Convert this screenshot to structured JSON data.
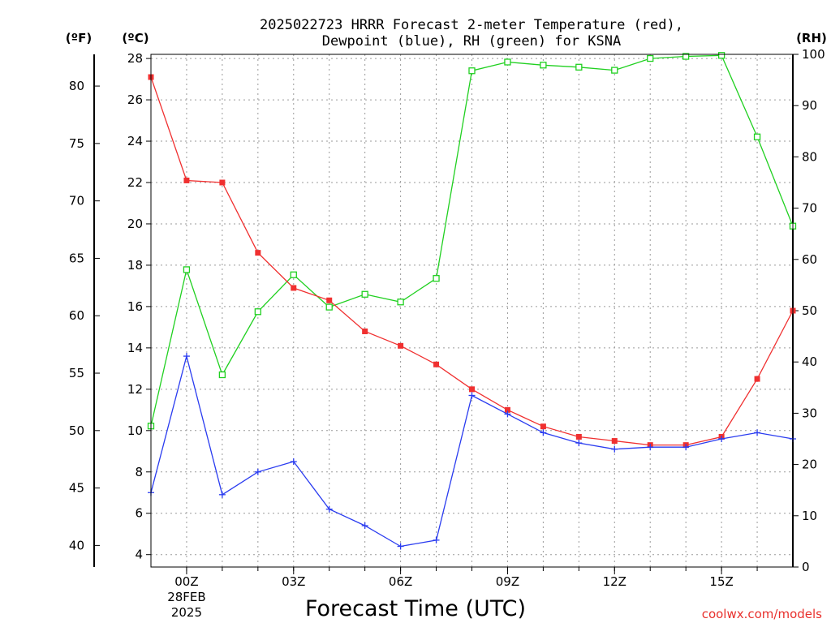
{
  "chart_data": {
    "type": "line",
    "title_lines": [
      "2025022723 HRRR Forecast 2-meter Temperature (red),",
      "Dewpoint (blue), RH (green) for KSNA"
    ],
    "xlabel": "Forecast Time (UTC)",
    "credit": "coolwx.com/models",
    "units": {
      "fahrenheit": "(ºF)",
      "celsius": "(ºC)",
      "rh": "(RH)"
    },
    "x_hours": [
      -1,
      0,
      1,
      2,
      3,
      4,
      5,
      6,
      7,
      8,
      9,
      10,
      11,
      12,
      13,
      14,
      15,
      16,
      17
    ],
    "x_ticks": [
      {
        "hour": 0,
        "label": "00Z",
        "sub1": "28FEB",
        "sub2": "2025"
      },
      {
        "hour": 3,
        "label": "03Z"
      },
      {
        "hour": 6,
        "label": "06Z"
      },
      {
        "hour": 9,
        "label": "09Z"
      },
      {
        "hour": 12,
        "label": "12Z"
      },
      {
        "hour": 15,
        "label": "15Z"
      }
    ],
    "xlim": [
      -1,
      17
    ],
    "ylim_celsius": [
      3.4,
      28.2
    ],
    "celsius_ticks": [
      "4",
      "6",
      "8",
      "10",
      "12",
      "14",
      "16",
      "18",
      "20",
      "22",
      "24",
      "26",
      "28"
    ],
    "fahrenheit_ticks": [
      "40",
      "45",
      "50",
      "55",
      "60",
      "65",
      "70",
      "75",
      "80"
    ],
    "ylim_rh": [
      0,
      100
    ],
    "rh_ticks": [
      "0",
      "10",
      "20",
      "30",
      "40",
      "50",
      "60",
      "70",
      "80",
      "90",
      "100"
    ],
    "grid": true,
    "series": [
      {
        "key": "temperature",
        "color": "#f03030",
        "marker": "filled-square",
        "axis": "celsius",
        "values": [
          27.1,
          22.1,
          22.0,
          18.6,
          16.9,
          16.3,
          14.8,
          14.1,
          13.2,
          12.0,
          11.0,
          10.2,
          9.7,
          9.5,
          9.3,
          9.3,
          9.7,
          12.5,
          15.8
        ]
      },
      {
        "key": "dewpoint",
        "color": "#2a3cf0",
        "marker": "plus",
        "axis": "celsius",
        "values": [
          7.0,
          13.6,
          6.9,
          8.0,
          8.5,
          6.2,
          5.4,
          4.4,
          4.7,
          11.7,
          10.8,
          9.9,
          9.4,
          9.1,
          9.2,
          9.2,
          9.6,
          9.9,
          9.6
        ]
      },
      {
        "key": "rh",
        "color": "#20d020",
        "marker": "open-square",
        "axis": "rh",
        "values": [
          27.5,
          58,
          37.5,
          49.8,
          57,
          50.7,
          53.2,
          51.7,
          56.3,
          96.8,
          98.5,
          97.9,
          97.5,
          96.9,
          99.2,
          99.6,
          99.8,
          83.9,
          66.5
        ]
      }
    ]
  }
}
